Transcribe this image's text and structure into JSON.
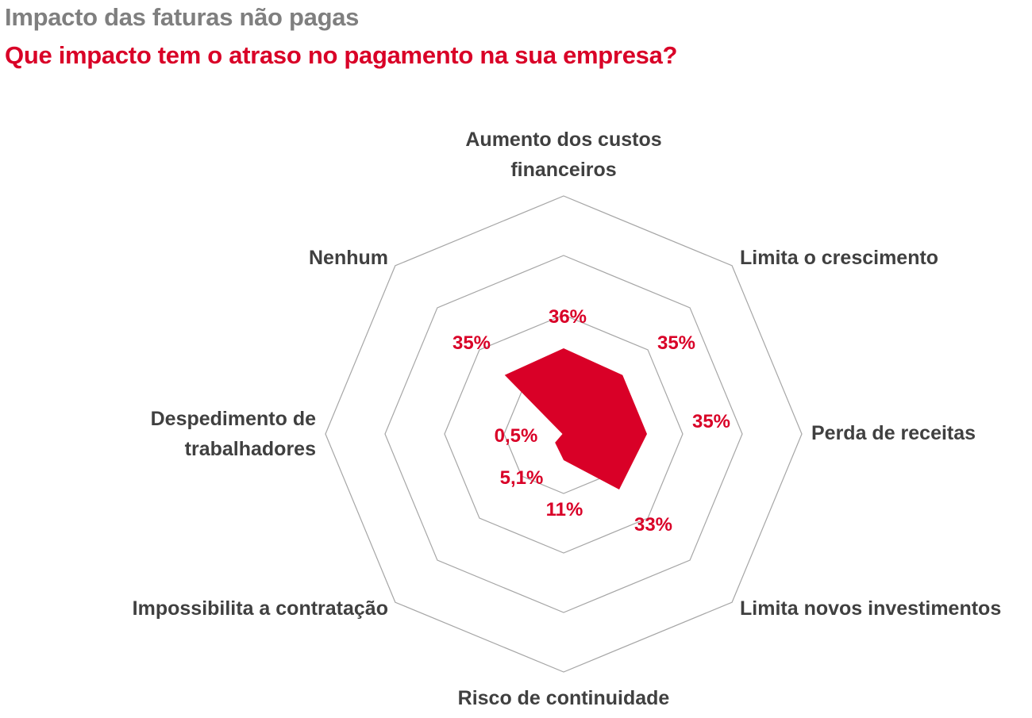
{
  "header": {
    "title": "Impacto das faturas não pagas",
    "subtitle": "Que impacto tem o atraso no pagamento na sua empresa?"
  },
  "chart_data": {
    "type": "radar",
    "title": "Impacto das faturas não pagas",
    "subtitle": "Que impacto tem o atraso no pagamento na sua empresa?",
    "unit": "%",
    "rmax": 100,
    "rings": [
      25,
      50,
      75,
      100
    ],
    "categories": [
      {
        "name": "Aumento dos custos financeiros",
        "lines": [
          "Aumento dos custos",
          "financeiros"
        ],
        "value": 36,
        "value_label": "36%"
      },
      {
        "name": "Limita o crescimento",
        "lines": [
          "Limita o crescimento"
        ],
        "value": 35,
        "value_label": "35%"
      },
      {
        "name": "Perda de receitas",
        "lines": [
          "Perda de receitas"
        ],
        "value": 35,
        "value_label": "35%"
      },
      {
        "name": "Limita novos investimentos",
        "lines": [
          "Limita novos investimentos"
        ],
        "value": 33,
        "value_label": "33%"
      },
      {
        "name": "Risco de continuidade",
        "lines": [
          "Risco de continuidade"
        ],
        "value": 11,
        "value_label": "11%"
      },
      {
        "name": "Impossibilita a contratação",
        "lines": [
          "Impossibilita a contratação"
        ],
        "value": 5.1,
        "value_label": "5,1%"
      },
      {
        "name": "Despedimento de trabalhadores",
        "lines": [
          "Despedimento de",
          "trabalhadores"
        ],
        "value": 0.5,
        "value_label": "0,5%"
      },
      {
        "name": "Nenhum",
        "lines": [
          "Nenhum"
        ],
        "value": 35,
        "value_label": "35%"
      }
    ],
    "colors": {
      "fill": "#d90027",
      "grid": "#a6a6a6",
      "category_text": "#404040",
      "value_text": "#d90027"
    },
    "legend": "none"
  }
}
